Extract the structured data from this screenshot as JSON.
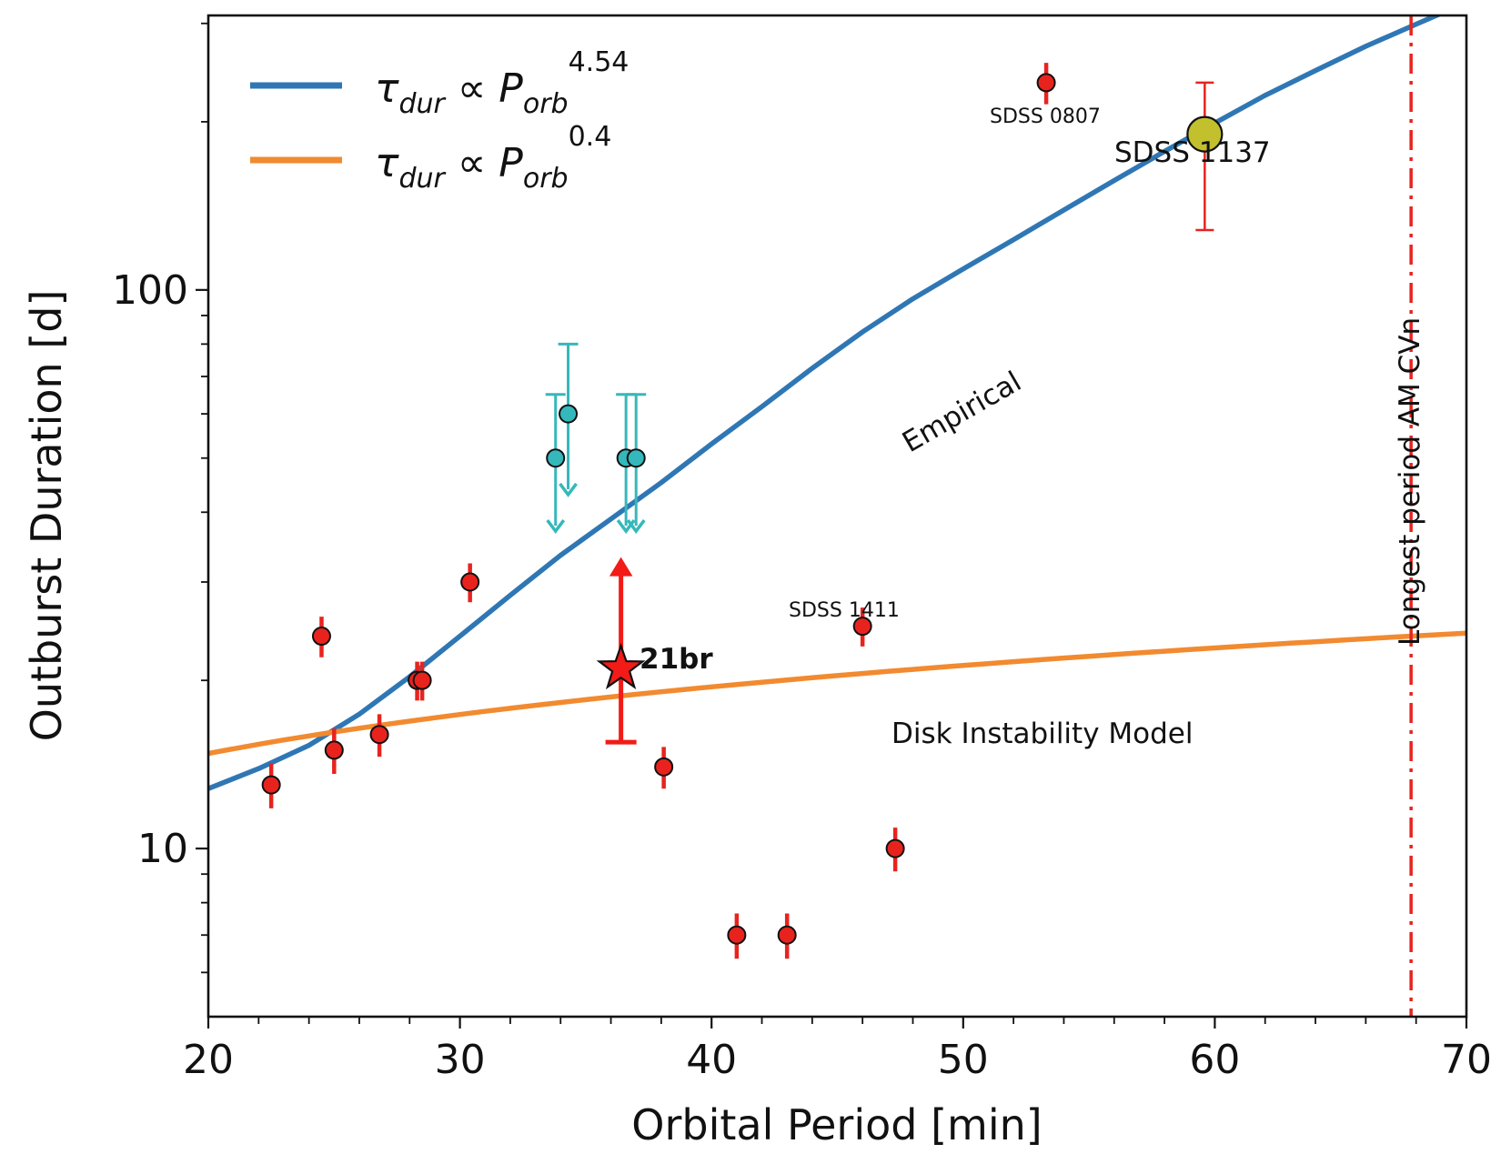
{
  "chart_data": {
    "type": "scatter",
    "xlabel": "Orbital Period [min]",
    "ylabel": "Outburst Duration [d]",
    "xlim": [
      20,
      70
    ],
    "ylim": [
      5,
      310
    ],
    "yscale": "log",
    "x_ticks": [
      20,
      30,
      40,
      50,
      60,
      70
    ],
    "y_ticks": [
      10,
      100
    ],
    "grid": false,
    "legend": {
      "position": "top-left",
      "entries": [
        {
          "base": "τ",
          "base_sub": "dur",
          "rel": " ∝ ",
          "var": "P",
          "var_sub": "orb",
          "exp": "4.54",
          "color": "#2f77b4"
        },
        {
          "base": "τ",
          "base_sub": "dur",
          "rel": " ∝ ",
          "var": "P",
          "var_sub": "orb",
          "exp": "0.4",
          "color": "#f28a30"
        }
      ]
    },
    "curves": {
      "empirical": {
        "color": "#2f77b4",
        "x": [
          20,
          22,
          24,
          26,
          28,
          30,
          32,
          34,
          36,
          38,
          40,
          42,
          44,
          46,
          48,
          50,
          52,
          54,
          56,
          58,
          60,
          62,
          64,
          66,
          68,
          70
        ],
        "y": [
          12.8,
          13.9,
          15.3,
          17.4,
          20.3,
          24.0,
          28.4,
          33.5,
          38.9,
          45.2,
          53.0,
          61.8,
          72.4,
          84.1,
          96.4,
          109,
          123,
          139,
          157,
          177,
          199,
          223,
          247,
          273,
          299,
          327
        ]
      },
      "disk_instability": {
        "color": "#f28a30",
        "x": [
          20,
          70
        ],
        "y": [
          14.8,
          24.3
        ]
      }
    },
    "points": [
      {
        "x": 22.5,
        "y": 13.0,
        "err": 1.2
      },
      {
        "x": 24.5,
        "y": 24.0,
        "err": 2.0
      },
      {
        "x": 25.0,
        "y": 15.0,
        "err": 1.4
      },
      {
        "x": 26.8,
        "y": 16.0,
        "err": 1.4
      },
      {
        "x": 28.3,
        "y": 20.0,
        "err": 1.6
      },
      {
        "x": 28.5,
        "y": 20.0,
        "err": 1.6
      },
      {
        "x": 30.4,
        "y": 30.0,
        "err": 2.4
      },
      {
        "x": 38.1,
        "y": 14.0,
        "err": 1.2
      },
      {
        "x": 41.0,
        "y": 7.0,
        "err": 0.65
      },
      {
        "x": 43.0,
        "y": 7.0,
        "err": 0.65
      },
      {
        "x": 46.0,
        "y": 25.0,
        "err": 2.0
      },
      {
        "x": 47.3,
        "y": 10.0,
        "err": 0.9
      },
      {
        "x": 53.3,
        "y": 235.0,
        "err": 20.0
      }
    ],
    "upper_limits": [
      {
        "x": 33.8,
        "y": 50,
        "top": 65,
        "bottom": 37
      },
      {
        "x": 34.3,
        "y": 60,
        "top": 80,
        "bottom": 43
      },
      {
        "x": 36.6,
        "y": 50,
        "top": 65,
        "bottom": 37
      },
      {
        "x": 37.0,
        "y": 50,
        "top": 65,
        "bottom": 37
      }
    ],
    "sdss1137": {
      "x": 59.6,
      "y": 190,
      "ylow": 128,
      "yhigh": 235
    },
    "star_21br": {
      "x": 36.4,
      "y": 21.0,
      "ylow": 15.5,
      "yhigh": 33.0
    },
    "vline": {
      "x": 67.8,
      "color": "#e8231e"
    },
    "annotations": {
      "sdss0807": "SDSS 0807",
      "sdss1137": "SDSS 1137",
      "sdss1411": "SDSS 1411",
      "star": "21br",
      "empirical": "Empirical",
      "disk": "Disk Instability Model",
      "vline": "Longest period AM CVn"
    }
  }
}
